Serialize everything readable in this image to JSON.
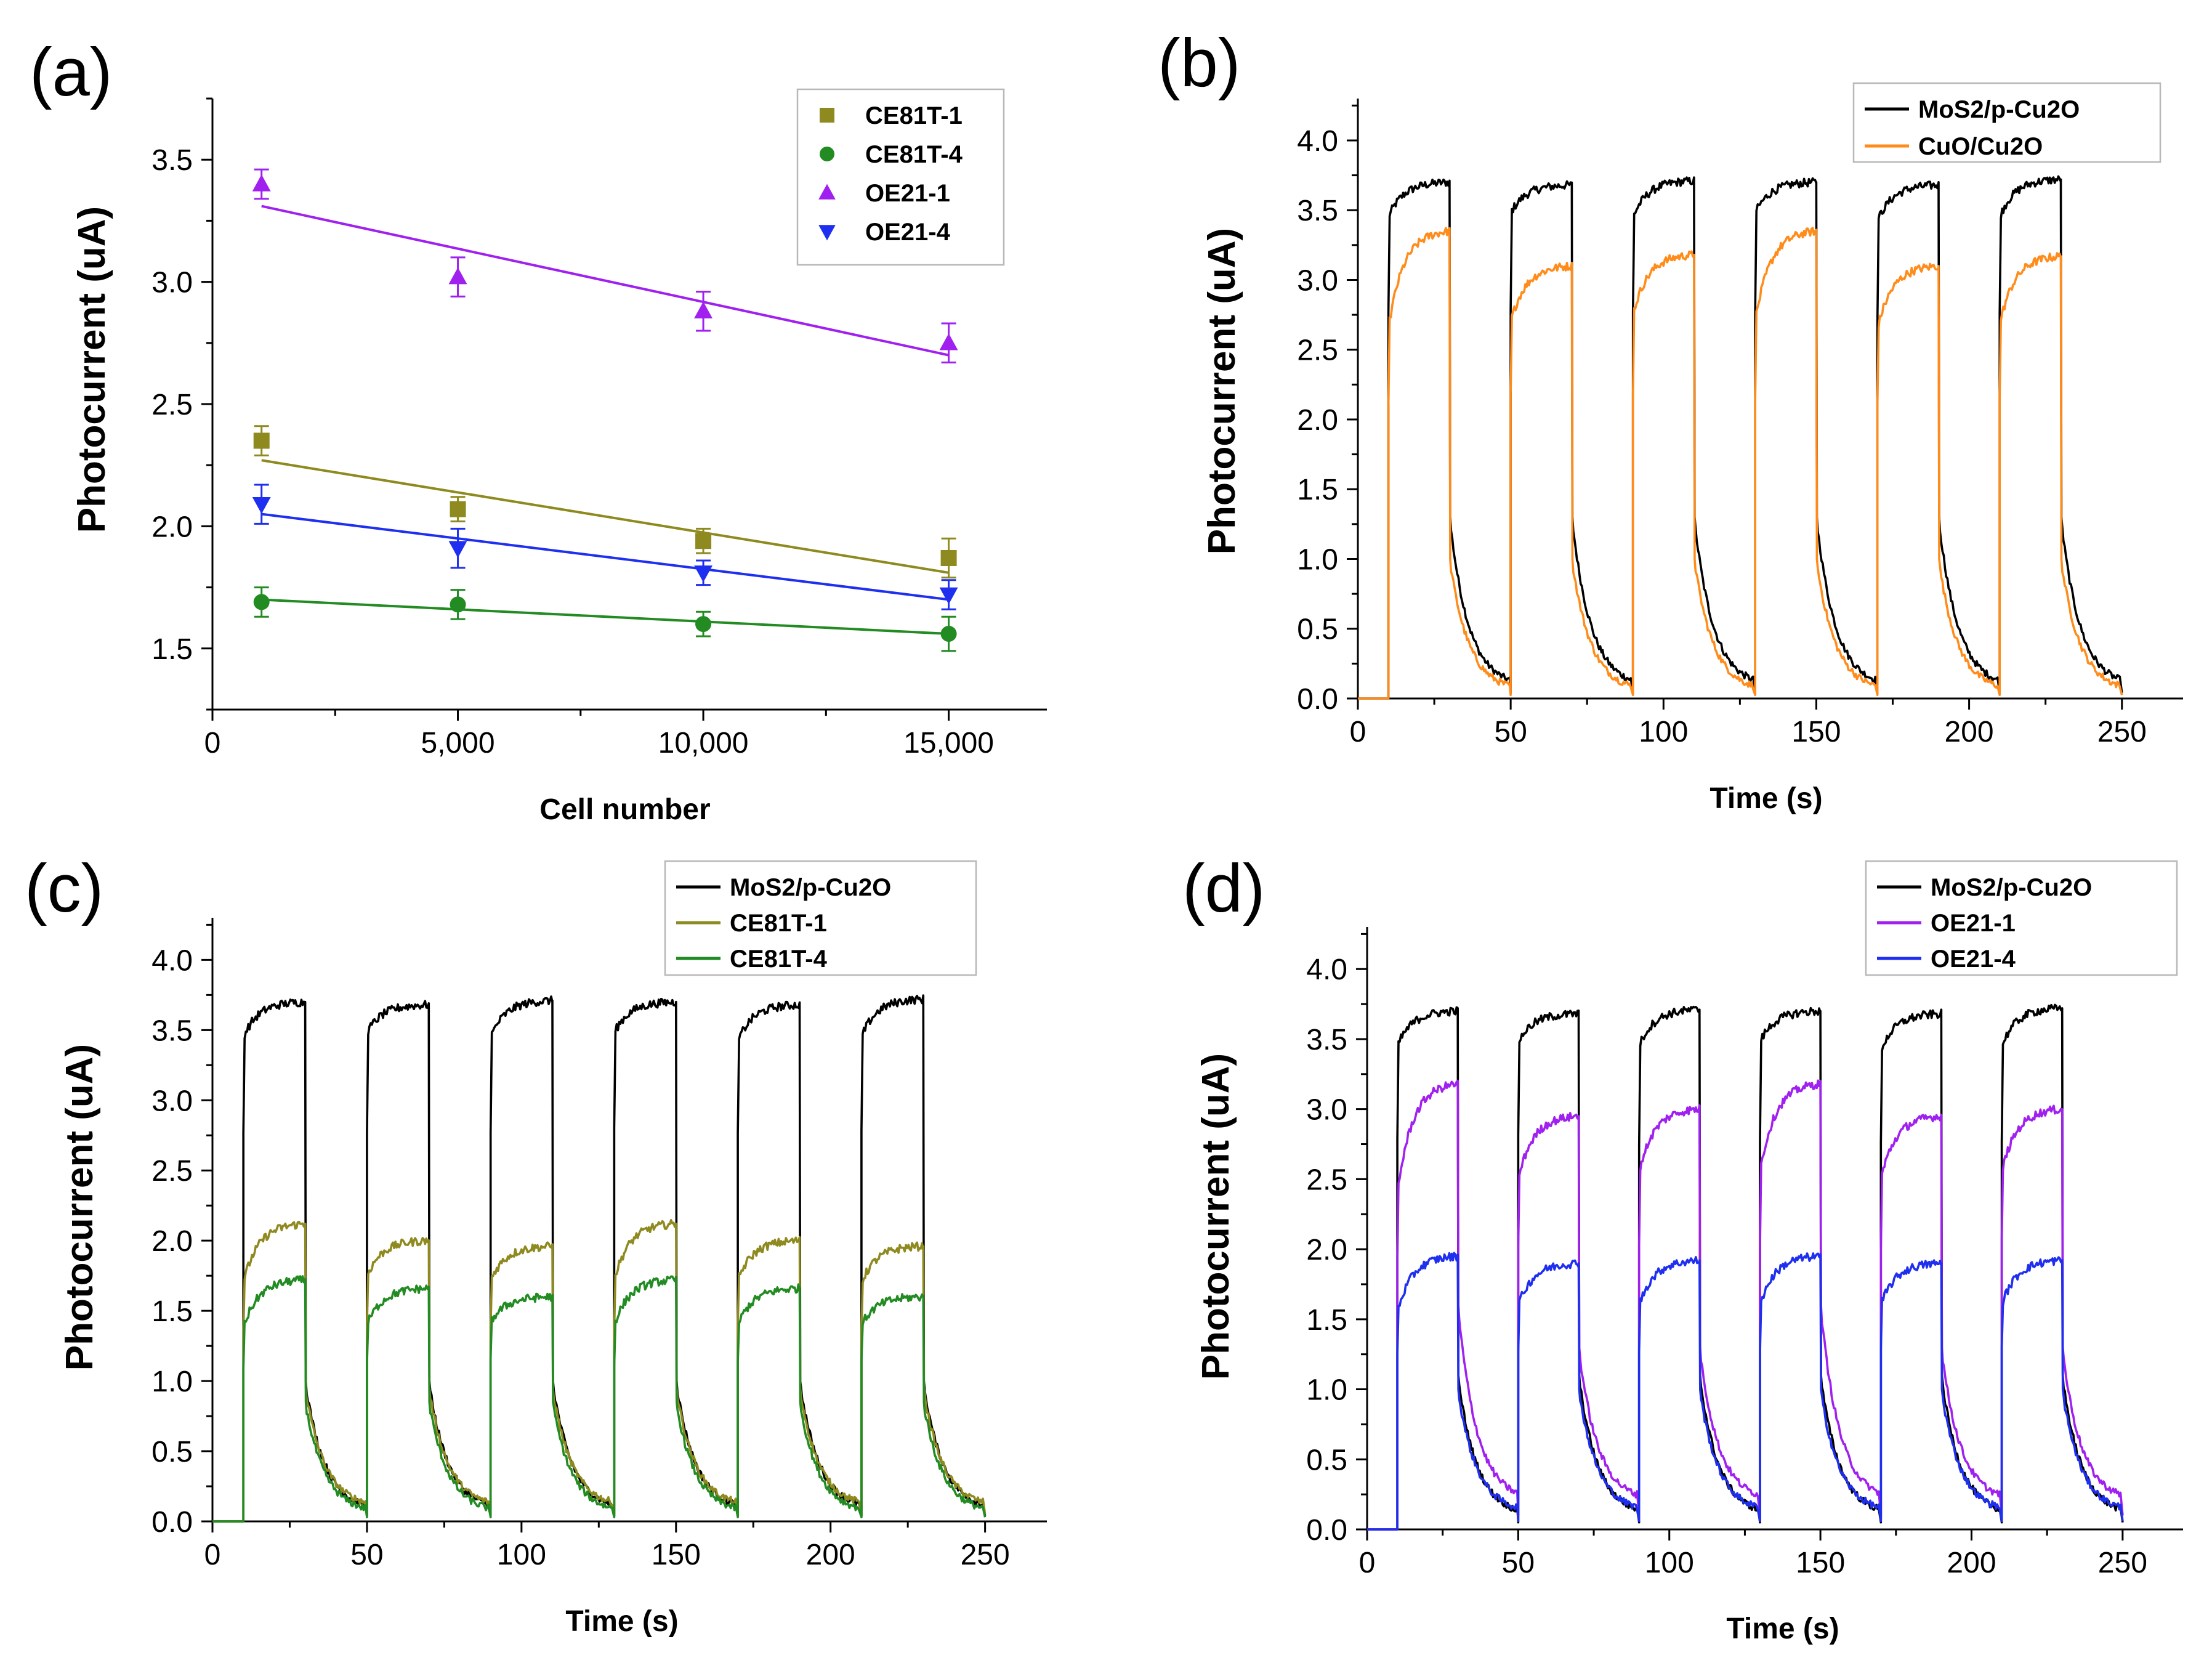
{
  "colors": {
    "CE81T-1": "#8f8a1f",
    "CE81T-4": "#228b22",
    "OE21-1": "#a020f0",
    "OE21-4": "#1f2ff0",
    "MoS2/p-Cu2O": "#000000",
    "CuO/Cu2O": "#ff8c1a"
  },
  "chart_data": [
    {
      "panel": "(a)",
      "type": "scatter",
      "xlabel": "Cell number",
      "ylabel": "Photocurrent (uA)",
      "xlim": [
        0,
        17000
      ],
      "ylim": [
        1.25,
        3.75
      ],
      "xticks": [
        0,
        5000,
        10000,
        15000
      ],
      "xtick_labels": [
        "0",
        "5,000",
        "10,000",
        "15,000"
      ],
      "yticks": [
        1.5,
        2.0,
        2.5,
        3.0,
        3.5
      ],
      "ytick_labels": [
        "1.5",
        "2.0",
        "2.5",
        "3.0",
        "3.5"
      ],
      "legend_position": "top-right",
      "series": [
        {
          "name": "CE81T-1",
          "marker": "square",
          "x": [
            1000,
            5000,
            10000,
            15000
          ],
          "y": [
            2.35,
            2.07,
            1.94,
            1.87
          ],
          "err": [
            0.06,
            0.05,
            0.05,
            0.08
          ],
          "fit": [
            2.27,
            1.81
          ]
        },
        {
          "name": "CE81T-4",
          "marker": "circle",
          "x": [
            1000,
            5000,
            10000,
            15000
          ],
          "y": [
            1.69,
            1.68,
            1.6,
            1.56
          ],
          "err": [
            0.06,
            0.06,
            0.05,
            0.07
          ],
          "fit": [
            1.7,
            1.56
          ]
        },
        {
          "name": "OE21-1",
          "marker": "triangle-up",
          "x": [
            1000,
            5000,
            10000,
            15000
          ],
          "y": [
            3.4,
            3.02,
            2.88,
            2.75
          ],
          "err": [
            0.06,
            0.08,
            0.08,
            0.08
          ],
          "fit": [
            3.31,
            2.7
          ]
        },
        {
          "name": "OE21-4",
          "marker": "triangle-down",
          "x": [
            1000,
            5000,
            10000,
            15000
          ],
          "y": [
            2.09,
            1.91,
            1.81,
            1.72
          ],
          "err": [
            0.08,
            0.08,
            0.05,
            0.06
          ],
          "fit": [
            2.05,
            1.7
          ]
        }
      ]
    },
    {
      "panel": "(b)",
      "type": "line",
      "xlabel": "Time (s)",
      "ylabel": "Photocurrent (uA)",
      "xlim": [
        0,
        270
      ],
      "ylim": [
        0,
        4.3
      ],
      "xticks": [
        0,
        50,
        100,
        150,
        200,
        250
      ],
      "xtick_labels": [
        "0",
        "50",
        "100",
        "150",
        "200",
        "250"
      ],
      "yticks": [
        0,
        0.5,
        1,
        1.5,
        2,
        2.5,
        3,
        3.5,
        4
      ],
      "ytick_labels": [
        "0.0",
        "0.5",
        "1.0",
        "1.5",
        "2.0",
        "2.5",
        "3.0",
        "3.5",
        "4.0"
      ],
      "legend_position": "top-right",
      "light_on_times": [
        10,
        50,
        90,
        130,
        170,
        210
      ],
      "light_on_duration": 20,
      "series": [
        {
          "name": "MoS2/p-Cu2O",
          "start": [
            3.45,
            3.48,
            3.45,
            3.48,
            3.42,
            3.45
          ],
          "peak": [
            3.7,
            3.68,
            3.71,
            3.7,
            3.68,
            3.72
          ],
          "drop": [
            1.3,
            1.3,
            1.3,
            1.3,
            1.3,
            1.3
          ],
          "tail": 0.08
        },
        {
          "name": "CuO/Cu2O",
          "start": [
            2.65,
            2.7,
            2.75,
            2.7,
            2.65,
            2.68
          ],
          "peak": [
            3.35,
            3.1,
            3.18,
            3.35,
            3.1,
            3.17
          ],
          "drop": [
            1.0,
            1.0,
            1.0,
            1.0,
            1.0,
            1.0
          ],
          "tail": 0.05
        }
      ]
    },
    {
      "panel": "(c)",
      "type": "line",
      "xlabel": "Time (s)",
      "ylabel": "Photocurrent (uA)",
      "xlim": [
        0,
        270
      ],
      "ylim": [
        0,
        4.3
      ],
      "xticks": [
        0,
        50,
        100,
        150,
        200,
        250
      ],
      "xtick_labels": [
        "0",
        "50",
        "100",
        "150",
        "200",
        "250"
      ],
      "yticks": [
        0,
        0.5,
        1,
        1.5,
        2,
        2.5,
        3,
        3.5,
        4
      ],
      "ytick_labels": [
        "0.0",
        "0.5",
        "1.0",
        "1.5",
        "2.0",
        "2.5",
        "3.0",
        "3.5",
        "4.0"
      ],
      "legend_position": "top-right",
      "light_on_times": [
        10,
        50,
        90,
        130,
        170,
        210
      ],
      "light_on_duration": 20,
      "series": [
        {
          "name": "MoS2/p-Cu2O",
          "start": [
            3.45,
            3.48,
            3.45,
            3.48,
            3.42,
            3.45
          ],
          "peak": [
            3.7,
            3.68,
            3.71,
            3.7,
            3.68,
            3.72
          ],
          "drop": [
            1.0,
            1.0,
            1.0,
            1.0,
            1.0,
            1.0
          ],
          "tail": 0.08
        },
        {
          "name": "CE81T-1",
          "start": [
            1.7,
            1.75,
            1.72,
            1.72,
            1.72,
            1.7
          ],
          "peak": [
            2.12,
            2.0,
            1.96,
            2.12,
            2.0,
            1.96
          ],
          "drop": [
            0.95,
            0.95,
            0.95,
            0.95,
            0.95,
            0.95
          ],
          "tail": 0.1
        },
        {
          "name": "CE81T-4",
          "start": [
            1.38,
            1.4,
            1.42,
            1.4,
            1.4,
            1.4
          ],
          "peak": [
            1.72,
            1.66,
            1.6,
            1.72,
            1.66,
            1.6
          ],
          "drop": [
            0.85,
            0.85,
            0.85,
            0.85,
            0.85,
            0.85
          ],
          "tail": 0.06
        }
      ]
    },
    {
      "panel": "(d)",
      "type": "line",
      "xlabel": "Time (s)",
      "ylabel": "Photocurrent (uA)",
      "xlim": [
        0,
        270
      ],
      "ylim": [
        0,
        4.3
      ],
      "xticks": [
        0,
        50,
        100,
        150,
        200,
        250
      ],
      "xtick_labels": [
        "0",
        "50",
        "100",
        "150",
        "200",
        "250"
      ],
      "yticks": [
        0,
        0.5,
        1,
        1.5,
        2,
        2.5,
        3,
        3.5,
        4
      ],
      "ytick_labels": [
        "0.0",
        "0.5",
        "1.0",
        "1.5",
        "2.0",
        "2.5",
        "3.0",
        "3.5",
        "4.0"
      ],
      "legend_position": "top-right",
      "light_on_times": [
        10,
        50,
        90,
        130,
        170,
        210
      ],
      "light_on_duration": 20,
      "series": [
        {
          "name": "MoS2/p-Cu2O",
          "start": [
            3.45,
            3.48,
            3.45,
            3.48,
            3.42,
            3.45
          ],
          "peak": [
            3.7,
            3.68,
            3.71,
            3.7,
            3.68,
            3.72
          ],
          "drop": [
            1.1,
            1.1,
            1.1,
            1.1,
            1.1,
            1.1
          ],
          "tail": 0.1
        },
        {
          "name": "OE21-1",
          "start": [
            2.4,
            2.5,
            2.55,
            2.55,
            2.5,
            2.55
          ],
          "peak": [
            3.18,
            2.95,
            3.0,
            3.18,
            2.95,
            3.0
          ],
          "drop": [
            1.6,
            1.3,
            1.3,
            1.6,
            1.3,
            1.3
          ],
          "tail": 0.2
        },
        {
          "name": "OE21-4",
          "start": [
            1.55,
            1.6,
            1.6,
            1.6,
            1.6,
            1.6
          ],
          "peak": [
            1.95,
            1.9,
            1.92,
            1.95,
            1.9,
            1.92
          ],
          "drop": [
            1.0,
            1.0,
            1.0,
            1.0,
            1.0,
            1.0
          ],
          "tail": 0.12
        }
      ]
    }
  ]
}
